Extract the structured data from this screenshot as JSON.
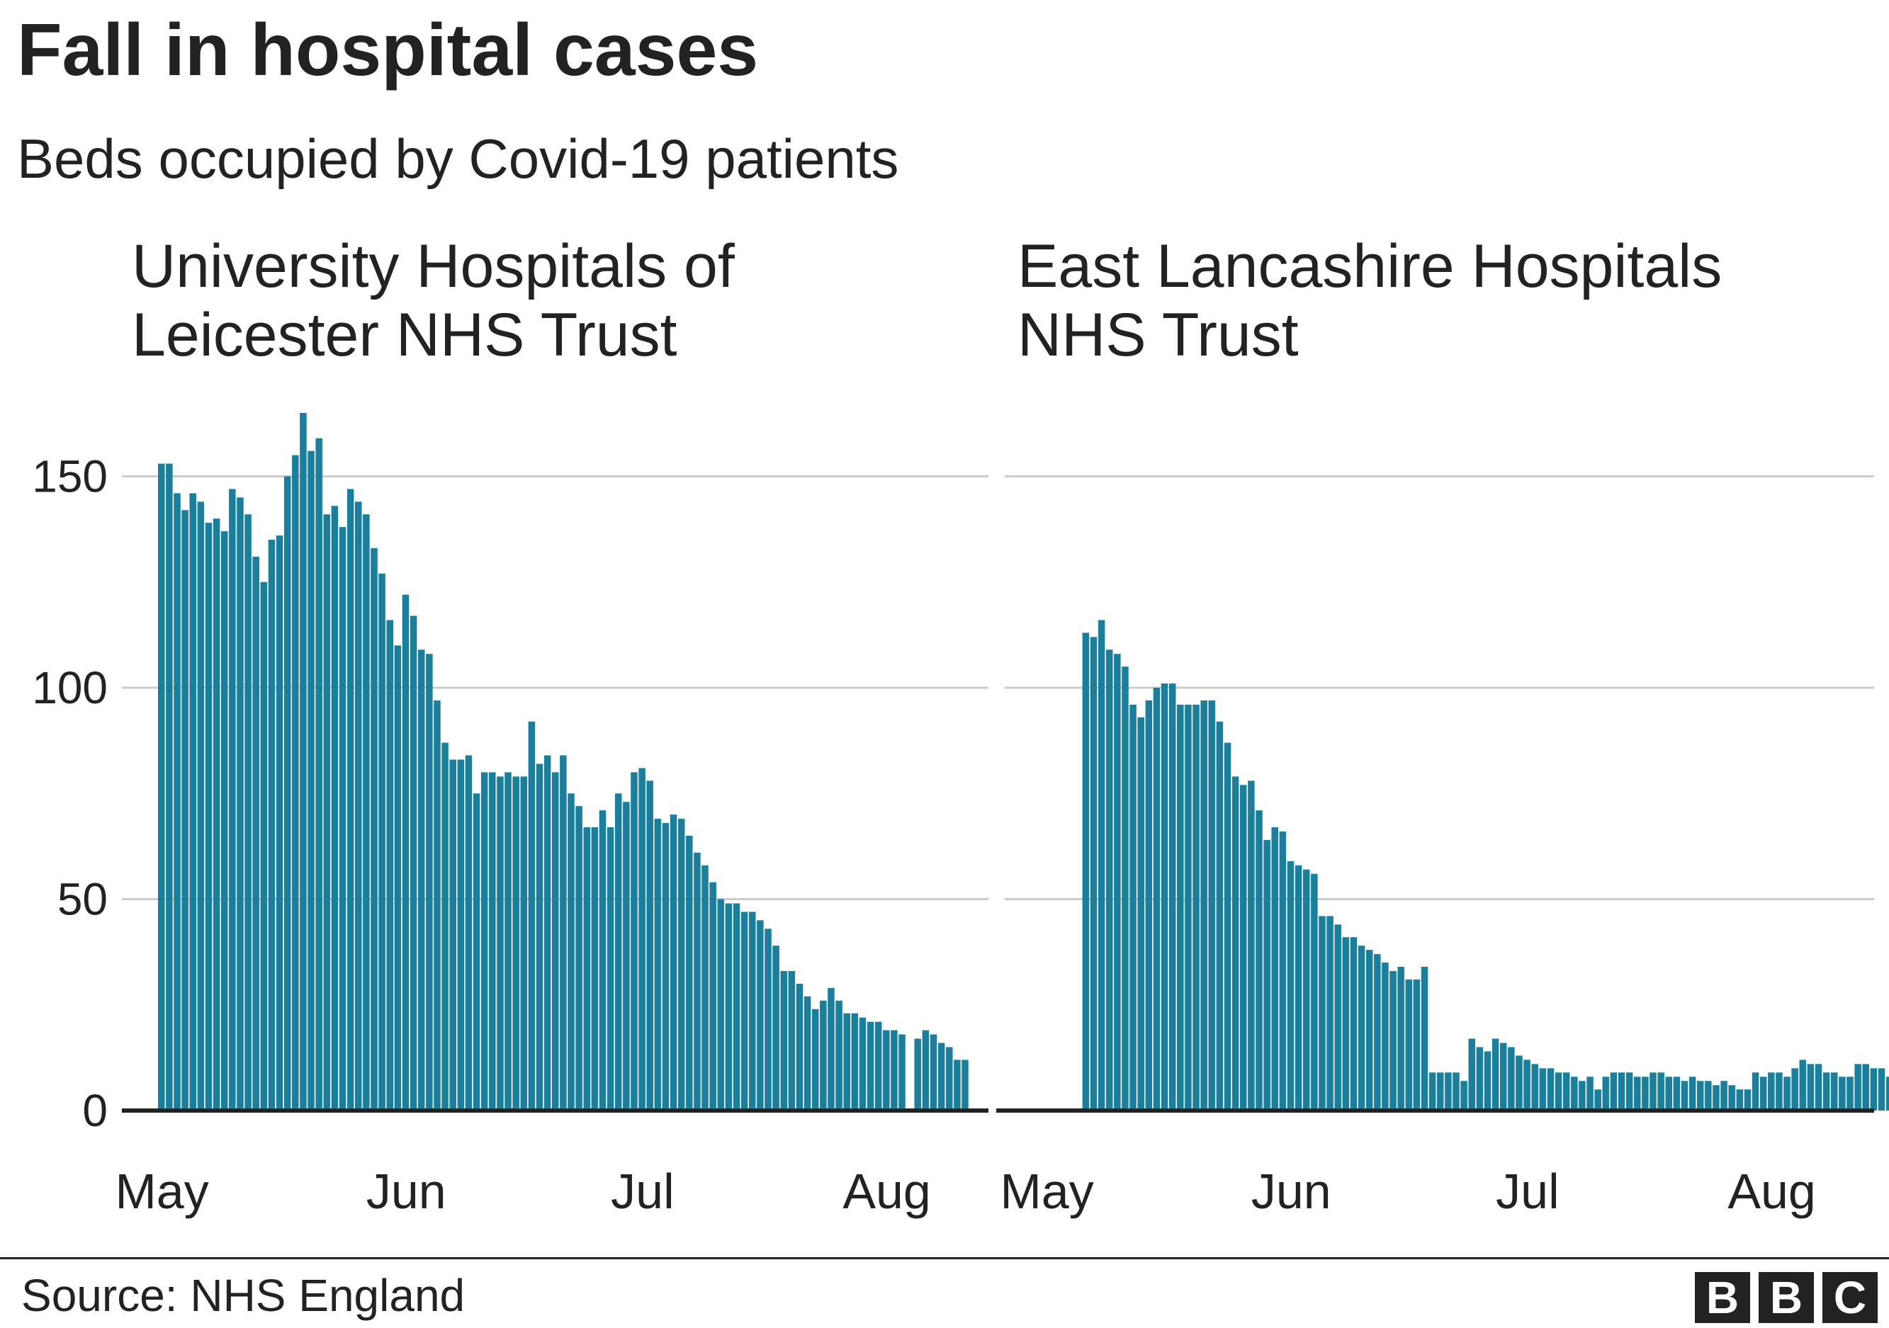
{
  "header": {
    "title": "Fall in hospital cases",
    "subtitle": "Beds occupied by Covid-19 patients"
  },
  "footer": {
    "source": "Source: NHS England",
    "logo_letters": [
      "B",
      "B",
      "C"
    ]
  },
  "colors": {
    "bar": "#1a7f9c",
    "grid": "#cccccc",
    "axis": "#222222",
    "text": "#222222"
  },
  "chart_data": [
    {
      "type": "bar",
      "title_lines": [
        "University Hospitals of",
        "Leicester NHS Trust"
      ],
      "x_start": "2020-05-01",
      "x_ticks": [
        "May",
        "Jun",
        "Jul",
        "Aug"
      ],
      "x_tick_dates": [
        "2020-05-01",
        "2020-06-01",
        "2020-07-01",
        "2020-08-01"
      ],
      "y_ticks": [
        0,
        50,
        100,
        150
      ],
      "ylim": [
        0,
        165
      ],
      "grid": true,
      "values": [
        153,
        153,
        146,
        142,
        146,
        144,
        139,
        140,
        137,
        147,
        145,
        141,
        131,
        125,
        135,
        136,
        150,
        155,
        165,
        156,
        159,
        141,
        143,
        138,
        147,
        144,
        141,
        133,
        127,
        116,
        110,
        122,
        117,
        109,
        108,
        97,
        87,
        83,
        83,
        84,
        75,
        80,
        80,
        79,
        80,
        79,
        79,
        92,
        82,
        84,
        80,
        84,
        75,
        72,
        67,
        67,
        71,
        67,
        75,
        73,
        80,
        81,
        78,
        69,
        68,
        70,
        69,
        65,
        61,
        58,
        54,
        50,
        49,
        49,
        47,
        47,
        45,
        43,
        39,
        33,
        33,
        30,
        27,
        24,
        26,
        29,
        26,
        23,
        23,
        22,
        21,
        21,
        19,
        19,
        18,
        null,
        17,
        19,
        18,
        16,
        15,
        12,
        12
      ]
    },
    {
      "type": "bar",
      "title_lines": [
        "East Lancashire Hospitals",
        "NHS Trust"
      ],
      "x_start": "2020-05-01",
      "x_ticks": [
        "May",
        "Jun",
        "Jul",
        "Aug"
      ],
      "x_tick_dates": [
        "2020-05-01",
        "2020-06-01",
        "2020-07-01",
        "2020-08-01"
      ],
      "y_ticks": [
        0,
        50,
        100,
        150
      ],
      "ylim": [
        0,
        165
      ],
      "grid": true,
      "values": [
        null,
        null,
        null,
        null,
        null,
        113,
        112,
        116,
        109,
        108,
        105,
        96,
        93,
        97,
        100,
        101,
        101,
        96,
        96,
        96,
        97,
        97,
        92,
        87,
        79,
        77,
        78,
        71,
        64,
        67,
        66,
        59,
        58,
        57,
        56,
        46,
        46,
        44,
        41,
        41,
        39,
        38,
        37,
        35,
        33,
        34,
        31,
        31,
        34,
        9,
        9,
        9,
        9,
        7,
        17,
        15,
        14,
        17,
        16,
        15,
        13,
        12,
        11,
        10,
        10,
        9,
        9,
        8,
        7,
        8,
        5,
        8,
        9,
        9,
        9,
        8,
        8,
        9,
        9,
        8,
        8,
        7,
        8,
        7,
        7,
        6,
        7,
        6,
        5,
        5,
        9,
        8,
        9,
        9,
        8,
        10,
        12,
        11,
        11,
        9,
        9,
        8,
        8,
        11,
        11,
        10,
        10,
        8,
        8,
        8
      ]
    }
  ]
}
